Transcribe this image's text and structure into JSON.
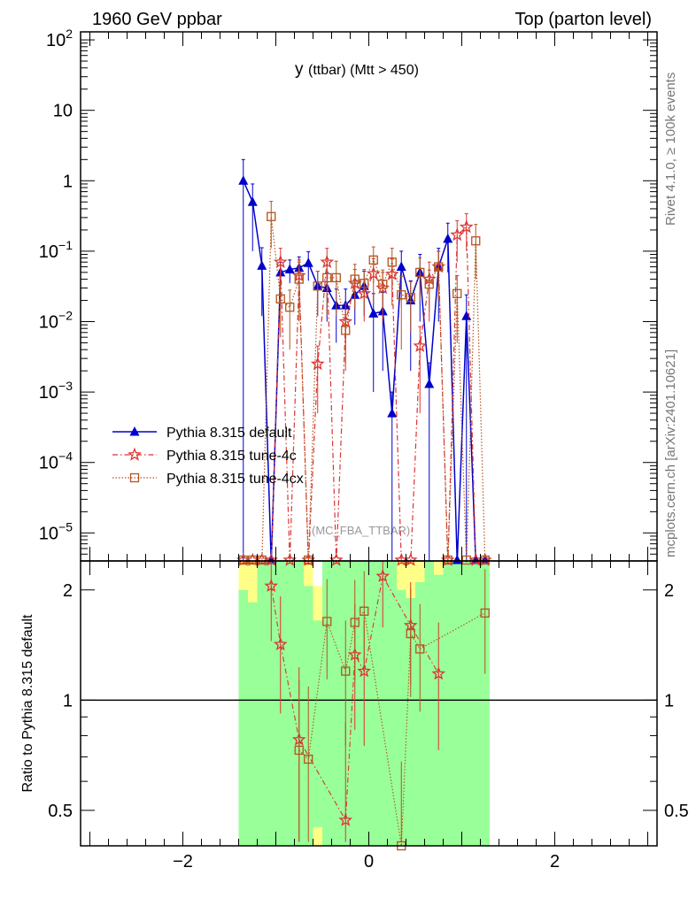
{
  "header": {
    "left_title": "1960 GeV ppbar",
    "right_title": "Top (parton level)"
  },
  "side_labels": {
    "rivet": "Rivet 4.1.0, ≥ 100k events",
    "mcplots": "mcplots.cern.ch [arXiv:2401.10621]"
  },
  "chart_data": [
    {
      "type": "line",
      "panel": "main",
      "title_main": "y",
      "title_sub": "(ttbar) (Mtt > 450)",
      "watermark": "(MC_FBA_TTBAR)",
      "xlabel": "",
      "ylabel": "",
      "yscale": "log",
      "xlim": [
        -3.1,
        3.1
      ],
      "ylim": [
        4e-06,
        130
      ],
      "y_tick_labels": [
        {
          "v": 100,
          "base": "10",
          "exp": "2"
        },
        {
          "v": 10,
          "base": "10",
          "exp": ""
        },
        {
          "v": 1,
          "base": "1",
          "exp": ""
        },
        {
          "v": 0.1,
          "base": "10",
          "exp": "−1"
        },
        {
          "v": 0.01,
          "base": "10",
          "exp": "−2"
        },
        {
          "v": 0.001,
          "base": "10",
          "exp": "−3"
        },
        {
          "v": 0.0001,
          "base": "10",
          "exp": "−4"
        },
        {
          "v": 1e-05,
          "base": "10",
          "exp": "−5"
        }
      ],
      "legend_position": "middle-left",
      "series": [
        {
          "name": "Pythia 8.315 default",
          "color": "#0000cc",
          "marker": "triangle",
          "x": [
            -1.35,
            -1.25,
            -1.15,
            -1.05,
            -0.95,
            -0.85,
            -0.75,
            -0.65,
            -0.55,
            -0.45,
            -0.35,
            -0.25,
            -0.15,
            -0.05,
            0.05,
            0.15,
            0.25,
            0.35,
            0.45,
            0.55,
            0.65,
            0.75,
            0.85,
            0.95,
            1.05,
            1.15,
            1.25
          ],
          "y": [
            1.0,
            0.5,
            0.062,
            0.0,
            0.05,
            0.055,
            0.058,
            0.068,
            0.032,
            0.03,
            0.017,
            0.017,
            0.024,
            0.032,
            0.013,
            0.014,
            0.0005,
            0.06,
            0.02,
            0.05,
            0.0013,
            0.06,
            0.15,
            0.0,
            0.012,
            0.0,
            0.0
          ],
          "err": [
            1.0,
            0.4,
            0.05,
            0.0,
            0.02,
            0.02,
            0.025,
            0.03,
            0.02,
            0.02,
            0.012,
            0.012,
            0.015,
            0.02,
            0.012,
            0.012,
            0.0005,
            0.04,
            0.018,
            0.04,
            0.0013,
            0.05,
            0.1,
            0.0,
            0.012,
            0.0,
            0.0
          ]
        },
        {
          "name": "Pythia 8.315 tune-4c",
          "color": "#dd3333",
          "marker": "star",
          "x": [
            -1.35,
            -1.25,
            -1.15,
            -1.05,
            -0.95,
            -0.85,
            -0.75,
            -0.65,
            -0.55,
            -0.45,
            -0.35,
            -0.25,
            -0.15,
            -0.05,
            0.05,
            0.15,
            0.25,
            0.35,
            0.45,
            0.55,
            0.65,
            0.75,
            0.85,
            0.95,
            1.05,
            1.15,
            1.25
          ],
          "y": [
            0.0,
            0.0,
            0.0,
            0.0,
            0.07,
            0.0,
            0.045,
            0.0,
            0.0025,
            0.07,
            0.0,
            0.01,
            0.035,
            0.025,
            0.048,
            0.03,
            0.047,
            0.0,
            0.0,
            0.0045,
            0.04,
            0.06,
            0.0,
            0.17,
            0.22,
            0.0,
            0.0
          ],
          "err": [
            0.0,
            0.0,
            0.0,
            0.0,
            0.04,
            0.0,
            0.03,
            0.0,
            0.002,
            0.04,
            0.0,
            0.008,
            0.02,
            0.015,
            0.03,
            0.02,
            0.03,
            0.0,
            0.0,
            0.004,
            0.03,
            0.04,
            0.0,
            0.1,
            0.12,
            0.0,
            0.0
          ]
        },
        {
          "name": "Pythia 8.315 tune-4cx",
          "color": "#b3541e",
          "marker": "square",
          "x": [
            -1.35,
            -1.25,
            -1.15,
            -1.05,
            -0.95,
            -0.85,
            -0.75,
            -0.65,
            -0.55,
            -0.45,
            -0.35,
            -0.25,
            -0.15,
            -0.05,
            0.05,
            0.15,
            0.25,
            0.35,
            0.45,
            0.55,
            0.65,
            0.75,
            0.85,
            0.95,
            1.05,
            1.15,
            1.25
          ],
          "y": [
            0.0,
            0.0,
            0.0,
            0.31,
            0.021,
            0.016,
            0.04,
            0.0,
            0.032,
            0.042,
            0.042,
            0.0075,
            0.04,
            0.035,
            0.075,
            0.034,
            0.07,
            0.024,
            0.022,
            0.05,
            0.034,
            0.06,
            0.0,
            0.025,
            0.0,
            0.14,
            0.0
          ],
          "err": [
            0.0,
            0.0,
            0.0,
            0.2,
            0.015,
            0.012,
            0.03,
            0.0,
            0.02,
            0.03,
            0.03,
            0.005,
            0.025,
            0.02,
            0.04,
            0.02,
            0.04,
            0.02,
            0.015,
            0.03,
            0.02,
            0.04,
            0.0,
            0.02,
            0.0,
            0.1,
            0.0
          ]
        }
      ]
    },
    {
      "type": "line",
      "panel": "ratio",
      "xlabel": "",
      "ylabel": "Ratio to Pythia 8.315 default",
      "xlim": [
        -3.1,
        3.1
      ],
      "ylim": [
        0.4,
        2.4
      ],
      "x_tick_labels": [
        {
          "v": -2,
          "t": "−2"
        },
        {
          "v": 0,
          "t": "0"
        },
        {
          "v": 2,
          "t": "2"
        }
      ],
      "y_tick_labels": [
        {
          "v": 2,
          "t": "2"
        },
        {
          "v": 1,
          "t": "1"
        },
        {
          "v": 0.5,
          "t": "0.5"
        }
      ],
      "reference_line": 1,
      "band_1sigma_color": "#99ff99",
      "band_2sigma_color": "#ffff88",
      "bands": {
        "x_edges": [
          -1.4,
          -1.3,
          -1.2,
          -1.1,
          -1.0,
          -0.9,
          -0.8,
          -0.7,
          -0.6,
          -0.5,
          -0.4,
          -0.3,
          -0.2,
          -0.1,
          0.0,
          0.1,
          0.2,
          0.3,
          0.4,
          0.5,
          0.6,
          0.7,
          0.8,
          0.9,
          1.0,
          1.1,
          1.2,
          1.3
        ],
        "green_hi": [
          2.0,
          1.85,
          2.4,
          2.4,
          2.4,
          2.4,
          2.4,
          2.05,
          1.65,
          2.4,
          2.4,
          2.4,
          2.4,
          2.4,
          2.4,
          2.4,
          2.4,
          2.0,
          1.9,
          2.1,
          2.4,
          2.2,
          2.4,
          2.4,
          2.4,
          2.4,
          2.4
        ],
        "yellow_hi": [
          2.4,
          2.4,
          2.4,
          2.4,
          2.4,
          2.4,
          2.4,
          2.4,
          2.05,
          2.4,
          2.4,
          2.4,
          2.4,
          2.4,
          2.4,
          2.4,
          2.4,
          2.4,
          2.4,
          2.4,
          2.4,
          2.4,
          2.4,
          2.4,
          2.4,
          2.4,
          2.4
        ],
        "green_lo": [
          0.4,
          0.4,
          0.4,
          0.4,
          0.4,
          0.4,
          0.4,
          0.4,
          0.45,
          0.4,
          0.4,
          0.4,
          0.4,
          0.4,
          0.4,
          0.4,
          0.4,
          0.4,
          0.4,
          0.4,
          0.4,
          0.4,
          0.4,
          0.4,
          0.4,
          0.4,
          0.4
        ]
      },
      "series": [
        {
          "name": "tune-4c / default",
          "color": "#dd3333",
          "marker": "star",
          "x": [
            -1.05,
            -0.95,
            -0.75,
            -0.25,
            -0.15,
            -0.05,
            0.15,
            0.45,
            0.75
          ],
          "y": [
            2.05,
            1.42,
            0.78,
            0.47,
            1.33,
            1.2,
            2.18,
            1.6,
            1.18
          ],
          "err": [
            0.6,
            0.5,
            0.45,
            0.4,
            0.5,
            0.45,
            0.6,
            0.5,
            0.45
          ]
        },
        {
          "name": "tune-4cx / default",
          "color": "#b3541e",
          "marker": "square",
          "x": [
            -0.75,
            -0.65,
            -0.45,
            -0.25,
            -0.15,
            -0.05,
            0.35,
            0.45,
            0.55,
            1.25
          ],
          "y": [
            0.73,
            0.69,
            1.64,
            1.2,
            1.63,
            1.75,
            0.38,
            1.52,
            1.38,
            1.73
          ],
          "err": [
            0.4,
            0.4,
            0.5,
            0.45,
            0.5,
            0.5,
            0.3,
            0.5,
            0.45,
            0.55
          ]
        }
      ]
    }
  ]
}
